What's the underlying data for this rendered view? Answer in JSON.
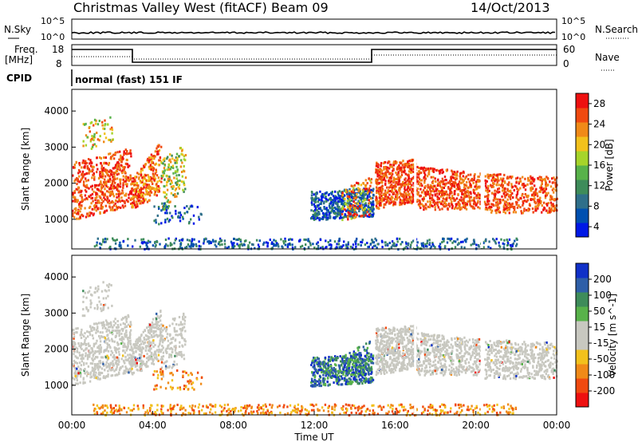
{
  "header": {
    "title": "Christmas Valley West (fitACF)",
    "beam": "Beam 09",
    "date": "14/Oct/2013"
  },
  "top_panels": {
    "nsky_label": "N.Sky",
    "nsky_ticks": [
      "10^5",
      "10^0"
    ],
    "nsearch_label": "N.Search",
    "nsearch_ticks": [
      "10^5",
      "10^0"
    ],
    "freq_label": "Freq.",
    "freq_unit": "[MHz]",
    "freq_ticks": [
      "18",
      "8"
    ],
    "nave_label": "Nave",
    "nave_ticks": [
      "60",
      "0"
    ],
    "cpid_label": "CPID",
    "cpid_value": "normal (fast) 151 IF"
  },
  "colors": {
    "power": [
      "#0018e6",
      "#0050b0",
      "#2f6f8a",
      "#3e8c5a",
      "#58b24a",
      "#a6d42a",
      "#f2c11c",
      "#f08a18",
      "#f04a10",
      "#ee1010"
    ],
    "velocity": [
      "#ee1010",
      "#f04a10",
      "#f08a18",
      "#f2c11c",
      "#c8c8c0",
      "#c8c8c0",
      "#58b24a",
      "#3e8c5a",
      "#2f5fa8",
      "#1030c8"
    ],
    "ground_scatter": "#c8c8c0"
  },
  "chart_data": [
    {
      "type": "heatmap",
      "name": "power",
      "ylabel": "Slant Range [km]",
      "yticks": [
        "4000",
        "3000",
        "2000",
        "1000"
      ],
      "colorbar_label": "Power [dB]",
      "colorbar_ticks": [
        "28",
        "24",
        "20",
        "16",
        "12",
        "8",
        "4"
      ],
      "xlim": [
        "00:00",
        "24:00"
      ],
      "ylim": [
        180,
        4600
      ]
    },
    {
      "type": "heatmap",
      "name": "velocity",
      "ylabel": "Slant Range [km]",
      "yticks": [
        "4000",
        "3000",
        "2000",
        "1000"
      ],
      "colorbar_label": "Velocity [m s^-1]",
      "colorbar_ticks": [
        "200",
        "100",
        "50",
        "15",
        "-15",
        "-50",
        "-100",
        "-200"
      ],
      "xlim": [
        "00:00",
        "24:00"
      ],
      "ylim": [
        180,
        4600
      ]
    }
  ],
  "xaxis": {
    "label": "Time UT",
    "ticks": [
      "00:00",
      "04:00",
      "08:00",
      "12:00",
      "16:00",
      "20:00",
      "00:00"
    ]
  }
}
